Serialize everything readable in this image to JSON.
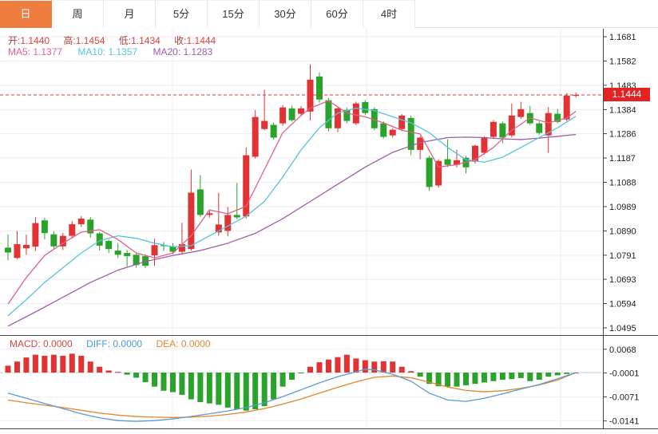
{
  "tab_bar": {
    "tabs": [
      {
        "label": "日",
        "active": true
      },
      {
        "label": "周",
        "active": false
      },
      {
        "label": "月",
        "active": false
      },
      {
        "label": "5分",
        "active": false
      },
      {
        "label": "15分",
        "active": false
      },
      {
        "label": "30分",
        "active": false
      },
      {
        "label": "60分",
        "active": false
      },
      {
        "label": "4时",
        "active": false
      }
    ]
  },
  "legend": {
    "ohlc": {
      "open_label": "开:",
      "open": "1.1440",
      "high_label": "高:",
      "high": "1.1454",
      "low_label": "低:",
      "low": "1.1434",
      "close_label": "收:",
      "close": "1.1444"
    },
    "ma": [
      {
        "label": "MA5:",
        "value": "1.1377"
      },
      {
        "label": "MA10:",
        "value": "1.1357"
      },
      {
        "label": "MA20:",
        "value": "1.1283"
      }
    ]
  },
  "macd_legend": [
    {
      "label": "MACD:",
      "value": "0.0000"
    },
    {
      "label": "DIFF:",
      "value": "0.0000"
    },
    {
      "label": "DEA:",
      "value": "0.0000"
    }
  ],
  "price_badge": "1.1444",
  "colors": {
    "up": "#e13333",
    "down": "#29a329",
    "ma5": "#e0608a",
    "ma10": "#54c3e0",
    "ma20": "#a05ca8",
    "diff": "#5b9bd5",
    "dea": "#e2852f",
    "price_line": "#e33232",
    "tab_accent": "#ee7c3f",
    "badge": "#e32222"
  },
  "chart_data": [
    {
      "type": "candlestick",
      "title": "Daily candlestick chart (red = up, green = down)",
      "legend_values": {
        "open": 1.144,
        "high": 1.1454,
        "low": 1.1434,
        "close": 1.1444,
        "ma5": 1.1377,
        "ma10": 1.1357,
        "ma20": 1.1283
      },
      "current_price": 1.1444,
      "y_axis": {
        "side": "right",
        "ticks": [
          1.1681,
          1.1582,
          1.1483,
          1.1384,
          1.1286,
          1.1187,
          1.1088,
          1.0989,
          1.089,
          1.0791,
          1.0693,
          1.0594,
          1.0495
        ]
      },
      "candles_format": [
        "open",
        "high",
        "low",
        "close"
      ],
      "candles": [
        [
          1.0822,
          1.0875,
          1.077,
          1.0802
        ],
        [
          1.078,
          1.089,
          1.0775,
          1.0836
        ],
        [
          1.0819,
          1.0875,
          1.0793,
          1.0833
        ],
        [
          1.0826,
          1.0946,
          1.0808,
          1.0922
        ],
        [
          1.0933,
          1.0944,
          1.0856,
          1.0881
        ],
        [
          1.0876,
          1.0888,
          1.0815,
          1.0827
        ],
        [
          1.0827,
          1.0882,
          1.0812,
          1.087
        ],
        [
          1.087,
          1.093,
          1.086,
          1.0917
        ],
        [
          1.0917,
          1.095,
          1.0906,
          1.094
        ],
        [
          1.0936,
          1.0946,
          1.0862,
          1.088
        ],
        [
          1.088,
          1.0886,
          1.081,
          1.083
        ],
        [
          1.0849,
          1.0855,
          1.08,
          1.0816
        ],
        [
          1.081,
          1.084,
          1.078,
          1.0793
        ],
        [
          1.08,
          1.0812,
          1.0745,
          1.0787
        ],
        [
          1.0793,
          1.08,
          1.074,
          1.0751
        ],
        [
          1.0787,
          1.0795,
          1.0738,
          1.0748
        ],
        [
          1.079,
          1.0858,
          1.0748,
          1.0832
        ],
        [
          1.0832,
          1.0845,
          1.0808,
          1.0828
        ],
        [
          1.0828,
          1.084,
          1.0795,
          1.0805
        ],
        [
          1.0805,
          1.0923,
          1.0793,
          1.0836
        ],
        [
          1.0816,
          1.114,
          1.081,
          1.1046
        ],
        [
          1.1059,
          1.1117,
          1.0948,
          1.0955
        ],
        [
          1.0955,
          1.0978,
          1.0944,
          1.0962
        ],
        [
          1.0884,
          1.1045,
          1.087,
          1.0916
        ],
        [
          1.089,
          1.0988,
          1.0868,
          1.0955
        ],
        [
          1.0955,
          1.1085,
          1.0938,
          1.0945
        ],
        [
          1.0949,
          1.123,
          1.094,
          1.1198
        ],
        [
          1.1192,
          1.1382,
          1.1185,
          1.1354
        ],
        [
          1.1305,
          1.1465,
          1.13,
          1.1338
        ],
        [
          1.1322,
          1.1332,
          1.1262,
          1.127
        ],
        [
          1.1328,
          1.1402,
          1.1318,
          1.1393
        ],
        [
          1.1389,
          1.1401,
          1.1335,
          1.1341
        ],
        [
          1.1367,
          1.1398,
          1.1356,
          1.1389
        ],
        [
          1.1376,
          1.1568,
          1.134,
          1.1506
        ],
        [
          1.1519,
          1.1535,
          1.1412,
          1.1425
        ],
        [
          1.1422,
          1.1431,
          1.1295,
          1.1308
        ],
        [
          1.1308,
          1.1396,
          1.1292,
          1.1389
        ],
        [
          1.1383,
          1.1392,
          1.1328,
          1.1338
        ],
        [
          1.1328,
          1.1416,
          1.1321,
          1.1409
        ],
        [
          1.1415,
          1.1423,
          1.1362,
          1.137
        ],
        [
          1.1386,
          1.1393,
          1.13,
          1.1308
        ],
        [
          1.1328,
          1.1336,
          1.1266,
          1.1273
        ],
        [
          1.1279,
          1.1309,
          1.127,
          1.1302
        ],
        [
          1.1305,
          1.1366,
          1.1297,
          1.136
        ],
        [
          1.135,
          1.1359,
          1.1198,
          1.122
        ],
        [
          1.122,
          1.1276,
          1.1182,
          1.127
        ],
        [
          1.1188,
          1.1196,
          1.1053,
          1.1069
        ],
        [
          1.1075,
          1.1181,
          1.1066,
          1.1175
        ],
        [
          1.1182,
          1.1263,
          1.115,
          1.1159
        ],
        [
          1.1159,
          1.1221,
          1.1149,
          1.1178
        ],
        [
          1.1188,
          1.1196,
          1.1124,
          1.1149
        ],
        [
          1.1172,
          1.1241,
          1.1164,
          1.1237
        ],
        [
          1.1208,
          1.1276,
          1.12,
          1.127
        ],
        [
          1.1273,
          1.1341,
          1.1264,
          1.1334
        ],
        [
          1.1328,
          1.1335,
          1.1247,
          1.127
        ],
        [
          1.1279,
          1.1409,
          1.1271,
          1.136
        ],
        [
          1.1354,
          1.1416,
          1.1347,
          1.1386
        ],
        [
          1.137,
          1.1399,
          1.1321,
          1.1328
        ],
        [
          1.1328,
          1.1336,
          1.1281,
          1.1289
        ],
        [
          1.1279,
          1.1394,
          1.1208,
          1.137
        ],
        [
          1.1367,
          1.1387,
          1.1329,
          1.1334
        ],
        [
          1.1344,
          1.1451,
          1.1337,
          1.1441
        ],
        [
          1.144,
          1.1454,
          1.1434,
          1.1444
        ]
      ],
      "ma5_points": [
        [
          0,
          1.0592
        ],
        [
          2,
          1.07
        ],
        [
          4,
          1.079
        ],
        [
          6,
          1.084
        ],
        [
          8,
          1.0885
        ],
        [
          10,
          1.0895
        ],
        [
          12,
          1.0855
        ],
        [
          14,
          1.08
        ],
        [
          16,
          1.078
        ],
        [
          18,
          1.08
        ],
        [
          20,
          1.087
        ],
        [
          22,
          1.0975
        ],
        [
          24,
          1.096
        ],
        [
          26,
          1.099
        ],
        [
          28,
          1.114
        ],
        [
          30,
          1.129
        ],
        [
          32,
          1.136
        ],
        [
          33,
          1.139
        ],
        [
          35,
          1.142
        ],
        [
          37,
          1.137
        ],
        [
          39,
          1.1355
        ],
        [
          41,
          1.133
        ],
        [
          43,
          1.13
        ],
        [
          45,
          1.1285
        ],
        [
          47,
          1.115
        ],
        [
          49,
          1.116
        ],
        [
          51,
          1.118
        ],
        [
          53,
          1.123
        ],
        [
          55,
          1.13
        ],
        [
          57,
          1.135
        ],
        [
          59,
          1.133
        ],
        [
          61,
          1.135
        ],
        [
          62,
          1.1377
        ]
      ],
      "ma10_points": [
        [
          0,
          1.0544
        ],
        [
          2,
          1.061
        ],
        [
          4,
          1.068
        ],
        [
          6,
          1.074
        ],
        [
          8,
          1.08
        ],
        [
          10,
          1.085
        ],
        [
          12,
          1.087
        ],
        [
          14,
          1.086
        ],
        [
          16,
          1.084
        ],
        [
          18,
          1.0825
        ],
        [
          20,
          1.083
        ],
        [
          22,
          1.087
        ],
        [
          24,
          1.091
        ],
        [
          26,
          1.095
        ],
        [
          28,
          1.101
        ],
        [
          30,
          1.111
        ],
        [
          32,
          1.122
        ],
        [
          34,
          1.131
        ],
        [
          36,
          1.137
        ],
        [
          38,
          1.139
        ],
        [
          40,
          1.138
        ],
        [
          42,
          1.1355
        ],
        [
          44,
          1.133
        ],
        [
          46,
          1.129
        ],
        [
          48,
          1.123
        ],
        [
          50,
          1.118
        ],
        [
          52,
          1.117
        ],
        [
          54,
          1.119
        ],
        [
          56,
          1.123
        ],
        [
          58,
          1.127
        ],
        [
          60,
          1.131
        ],
        [
          62,
          1.1357
        ]
      ],
      "ma20_points": [
        [
          0,
          1.0502
        ],
        [
          3,
          1.056
        ],
        [
          6,
          1.062
        ],
        [
          9,
          1.068
        ],
        [
          12,
          1.073
        ],
        [
          15,
          1.0765
        ],
        [
          18,
          1.079
        ],
        [
          21,
          1.081
        ],
        [
          24,
          1.084
        ],
        [
          27,
          1.088
        ],
        [
          30,
          1.094
        ],
        [
          33,
          1.101
        ],
        [
          36,
          1.108
        ],
        [
          39,
          1.115
        ],
        [
          42,
          1.121
        ],
        [
          45,
          1.125
        ],
        [
          48,
          1.127
        ],
        [
          50,
          1.1272
        ],
        [
          52,
          1.127
        ],
        [
          54,
          1.1265
        ],
        [
          56,
          1.1262
        ],
        [
          58,
          1.1268
        ],
        [
          60,
          1.1275
        ],
        [
          62,
          1.1283
        ]
      ]
    },
    {
      "type": "bar",
      "title": "MACD",
      "legend_values": {
        "macd": 0.0,
        "diff": 0.0,
        "dea": 0.0
      },
      "y_axis": {
        "side": "right",
        "ticks": [
          0.0068,
          -0.0001,
          -0.0071,
          -0.0141
        ]
      },
      "values": [
        0.002,
        0.0032,
        0.0044,
        0.0052,
        0.0049,
        0.0052,
        0.0049,
        0.0055,
        0.0049,
        0.0032,
        0.0017,
        0.0006,
        0.0002,
        -0.0006,
        -0.0015,
        -0.0028,
        -0.0041,
        -0.0053,
        -0.0057,
        -0.0065,
        -0.0078,
        -0.0086,
        -0.009,
        -0.0094,
        -0.0102,
        -0.0107,
        -0.0111,
        -0.0107,
        -0.0098,
        -0.0078,
        -0.0041,
        -0.0021,
        -0.0002,
        0.0017,
        0.003,
        0.0038,
        0.0045,
        0.0052,
        0.0041,
        0.0036,
        0.0032,
        0.0033,
        0.0032,
        0.0017,
        0.0004,
        -0.0012,
        -0.0033,
        -0.004,
        -0.0041,
        -0.0041,
        -0.0037,
        -0.0033,
        -0.0029,
        -0.0025,
        -0.0021,
        -0.0019,
        -0.0016,
        -0.0025,
        -0.0021,
        -0.0012,
        -0.0008,
        -0.0004,
        0.0
      ],
      "diff_points": [
        [
          0,
          -0.006
        ],
        [
          2,
          -0.0075
        ],
        [
          4,
          -0.009
        ],
        [
          6,
          -0.0105
        ],
        [
          8,
          -0.012
        ],
        [
          10,
          -0.0132
        ],
        [
          12,
          -0.014
        ],
        [
          14,
          -0.0142
        ],
        [
          16,
          -0.014
        ],
        [
          18,
          -0.0135
        ],
        [
          20,
          -0.0128
        ],
        [
          22,
          -0.012
        ],
        [
          24,
          -0.0112
        ],
        [
          26,
          -0.0102
        ],
        [
          28,
          -0.0088
        ],
        [
          30,
          -0.007
        ],
        [
          32,
          -0.005
        ],
        [
          34,
          -0.003
        ],
        [
          36,
          -0.0012
        ],
        [
          38,
          0.0002
        ],
        [
          39,
          0.001
        ],
        [
          40,
          0.0008
        ],
        [
          42,
          -0.0005
        ],
        [
          44,
          -0.0025
        ],
        [
          46,
          -0.006
        ],
        [
          48,
          -0.008
        ],
        [
          50,
          -0.0084
        ],
        [
          52,
          -0.0075
        ],
        [
          54,
          -0.0062
        ],
        [
          56,
          -0.0048
        ],
        [
          58,
          -0.0035
        ],
        [
          60,
          -0.0018
        ],
        [
          62,
          0.0
        ]
      ],
      "dea_points": [
        [
          0,
          -0.008
        ],
        [
          2,
          -0.0088
        ],
        [
          4,
          -0.0095
        ],
        [
          6,
          -0.0102
        ],
        [
          8,
          -0.011
        ],
        [
          10,
          -0.0118
        ],
        [
          12,
          -0.0124
        ],
        [
          14,
          -0.0128
        ],
        [
          16,
          -0.013
        ],
        [
          18,
          -0.0131
        ],
        [
          20,
          -0.013
        ],
        [
          22,
          -0.0127
        ],
        [
          24,
          -0.0122
        ],
        [
          26,
          -0.0115
        ],
        [
          28,
          -0.0105
        ],
        [
          30,
          -0.0092
        ],
        [
          32,
          -0.0077
        ],
        [
          34,
          -0.006
        ],
        [
          36,
          -0.0043
        ],
        [
          38,
          -0.0027
        ],
        [
          40,
          -0.0014
        ],
        [
          42,
          -0.001
        ],
        [
          44,
          -0.0015
        ],
        [
          46,
          -0.0028
        ],
        [
          48,
          -0.0042
        ],
        [
          50,
          -0.0052
        ],
        [
          52,
          -0.0056
        ],
        [
          54,
          -0.0053
        ],
        [
          56,
          -0.0046
        ],
        [
          58,
          -0.0036
        ],
        [
          60,
          -0.0022
        ],
        [
          62,
          0.0
        ]
      ]
    }
  ]
}
